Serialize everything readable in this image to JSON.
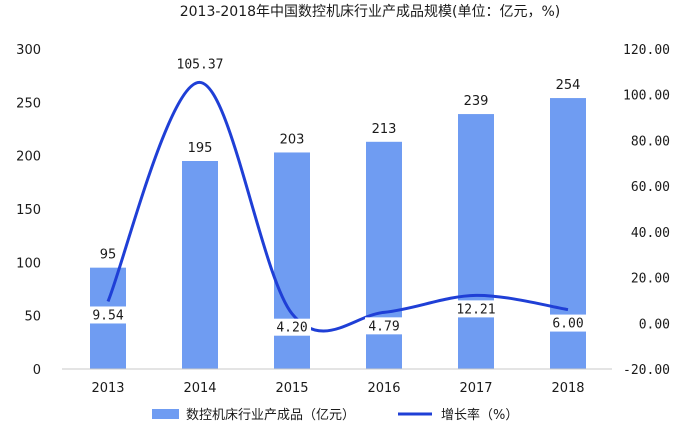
{
  "chart_data": {
    "type": "bar",
    "title": "2013-2018年中国数控机床行业产成品规模(单位：亿元，%)",
    "categories": [
      "2013",
      "2014",
      "2015",
      "2016",
      "2017",
      "2018"
    ],
    "series": [
      {
        "name": "数控机床行业产成品（亿元）",
        "type": "bar",
        "axis": "left",
        "values": [
          95,
          195,
          203,
          213,
          239,
          254
        ],
        "labels": [
          "95",
          "195",
          "203",
          "213",
          "239",
          "254"
        ],
        "color": "#6f9cf2"
      },
      {
        "name": "增长率（%）",
        "type": "line",
        "axis": "right",
        "values": [
          9.54,
          105.37,
          4.2,
          4.79,
          12.21,
          6.0
        ],
        "labels": [
          "9.54",
          "105.37",
          "4.20",
          "4.79",
          "12.21",
          "6.00"
        ],
        "color": "#1f3fd6"
      }
    ],
    "y_left": {
      "min": 0,
      "max": 300,
      "ticks": [
        "0",
        "50",
        "100",
        "150",
        "200",
        "250",
        "300"
      ]
    },
    "y_right": {
      "min": -20,
      "max": 120,
      "ticks": [
        "-20.00",
        "0.00",
        "20.00",
        "40.00",
        "60.00",
        "80.00",
        "100.00",
        "120.00"
      ]
    },
    "grid": false,
    "legend": "bottom"
  }
}
